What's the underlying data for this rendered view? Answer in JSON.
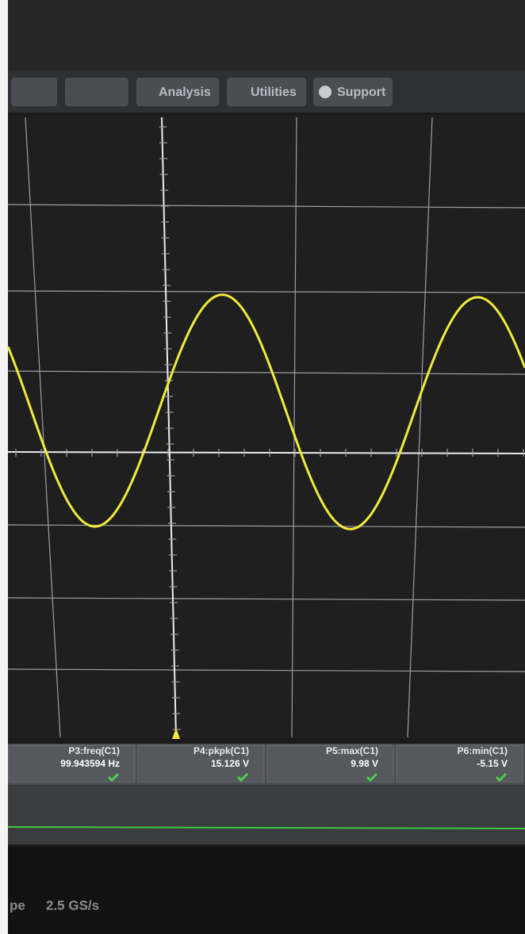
{
  "menu": [
    "Analysis",
    "Utilities",
    "Support"
  ],
  "measurements": [
    {
      "label": "P3:freq(C1)",
      "value": "99.943594 Hz"
    },
    {
      "label": "P4:pkpk(C1)",
      "value": "15.126 V"
    },
    {
      "label": "P5:max(C1)",
      "value": "9.98 V"
    },
    {
      "label": "P6:min(C1)",
      "value": "-5.15 V"
    }
  ],
  "footer": {
    "mode": "pe",
    "rate": "2.5 GS/s"
  }
}
